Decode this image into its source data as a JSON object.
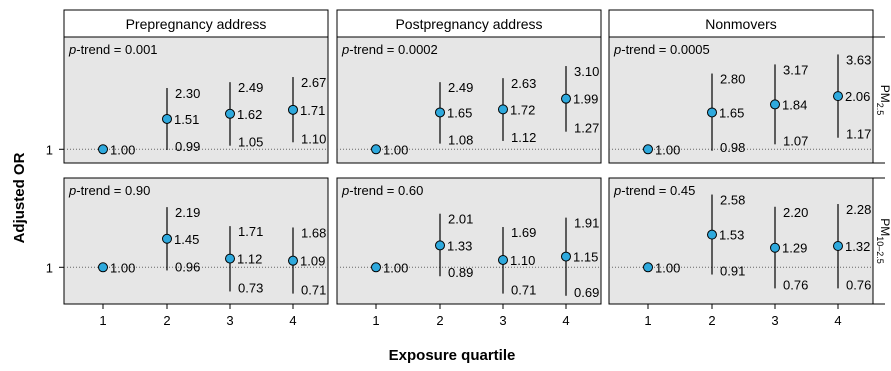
{
  "axis": {
    "ylabel": "Adjusted OR",
    "xlabel": "Exposure quartile",
    "xticks": [
      "1",
      "2",
      "3",
      "4"
    ],
    "yref_label": "1"
  },
  "colors": {
    "panel_bg": "#e6e6e6",
    "point_fill": "#2ea9dd",
    "line": "#000000"
  },
  "chart_data": {
    "type": "scatter",
    "log_scale_y": true,
    "grid": false,
    "reference_line": 1.0,
    "x": [
      1,
      2,
      3,
      4
    ],
    "columns": [
      "Prepregnancy address",
      "Postpregnancy address",
      "Nonmovers"
    ],
    "rows": [
      {
        "label": "PM",
        "subscript": "2.5"
      },
      {
        "label": "PM",
        "subscript": "10–2.5"
      }
    ],
    "ylim": [
      [
        0.83,
        4.6
      ],
      [
        0.62,
        3.2
      ]
    ],
    "panels": [
      {
        "row": 0,
        "col": 0,
        "p_trend": "= 0.001",
        "or": [
          "1.00",
          "1.51",
          "1.62",
          "1.71"
        ],
        "lower": [
          "",
          "0.99",
          "1.05",
          "1.10"
        ],
        "upper": [
          "",
          "2.30",
          "2.49",
          "2.67"
        ]
      },
      {
        "row": 0,
        "col": 1,
        "p_trend": "= 0.0002",
        "or": [
          "1.00",
          "1.65",
          "1.72",
          "1.99"
        ],
        "lower": [
          "",
          "1.08",
          "1.12",
          "1.27"
        ],
        "upper": [
          "",
          "2.49",
          "2.63",
          "3.10"
        ]
      },
      {
        "row": 0,
        "col": 2,
        "p_trend": "= 0.0005",
        "or": [
          "1.00",
          "1.65",
          "1.84",
          "2.06"
        ],
        "lower": [
          "",
          "0.98",
          "1.07",
          "1.17"
        ],
        "upper": [
          "",
          "2.80",
          "3.17",
          "3.63"
        ]
      },
      {
        "row": 1,
        "col": 0,
        "p_trend": "= 0.90",
        "or": [
          "1.00",
          "1.45",
          "1.12",
          "1.09"
        ],
        "lower": [
          "",
          "0.96",
          "0.73",
          "0.71"
        ],
        "upper": [
          "",
          "2.19",
          "1.71",
          "1.68"
        ]
      },
      {
        "row": 1,
        "col": 1,
        "p_trend": "= 0.60",
        "or": [
          "1.00",
          "1.33",
          "1.10",
          "1.15"
        ],
        "lower": [
          "",
          "0.89",
          "0.71",
          "0.69"
        ],
        "upper": [
          "",
          "2.01",
          "1.69",
          "1.91"
        ]
      },
      {
        "row": 1,
        "col": 2,
        "p_trend": "= 0.45",
        "or": [
          "1.00",
          "1.53",
          "1.29",
          "1.32"
        ],
        "lower": [
          "",
          "0.91",
          "0.76",
          "0.76"
        ],
        "upper": [
          "",
          "2.58",
          "2.20",
          "2.28"
        ]
      }
    ]
  }
}
